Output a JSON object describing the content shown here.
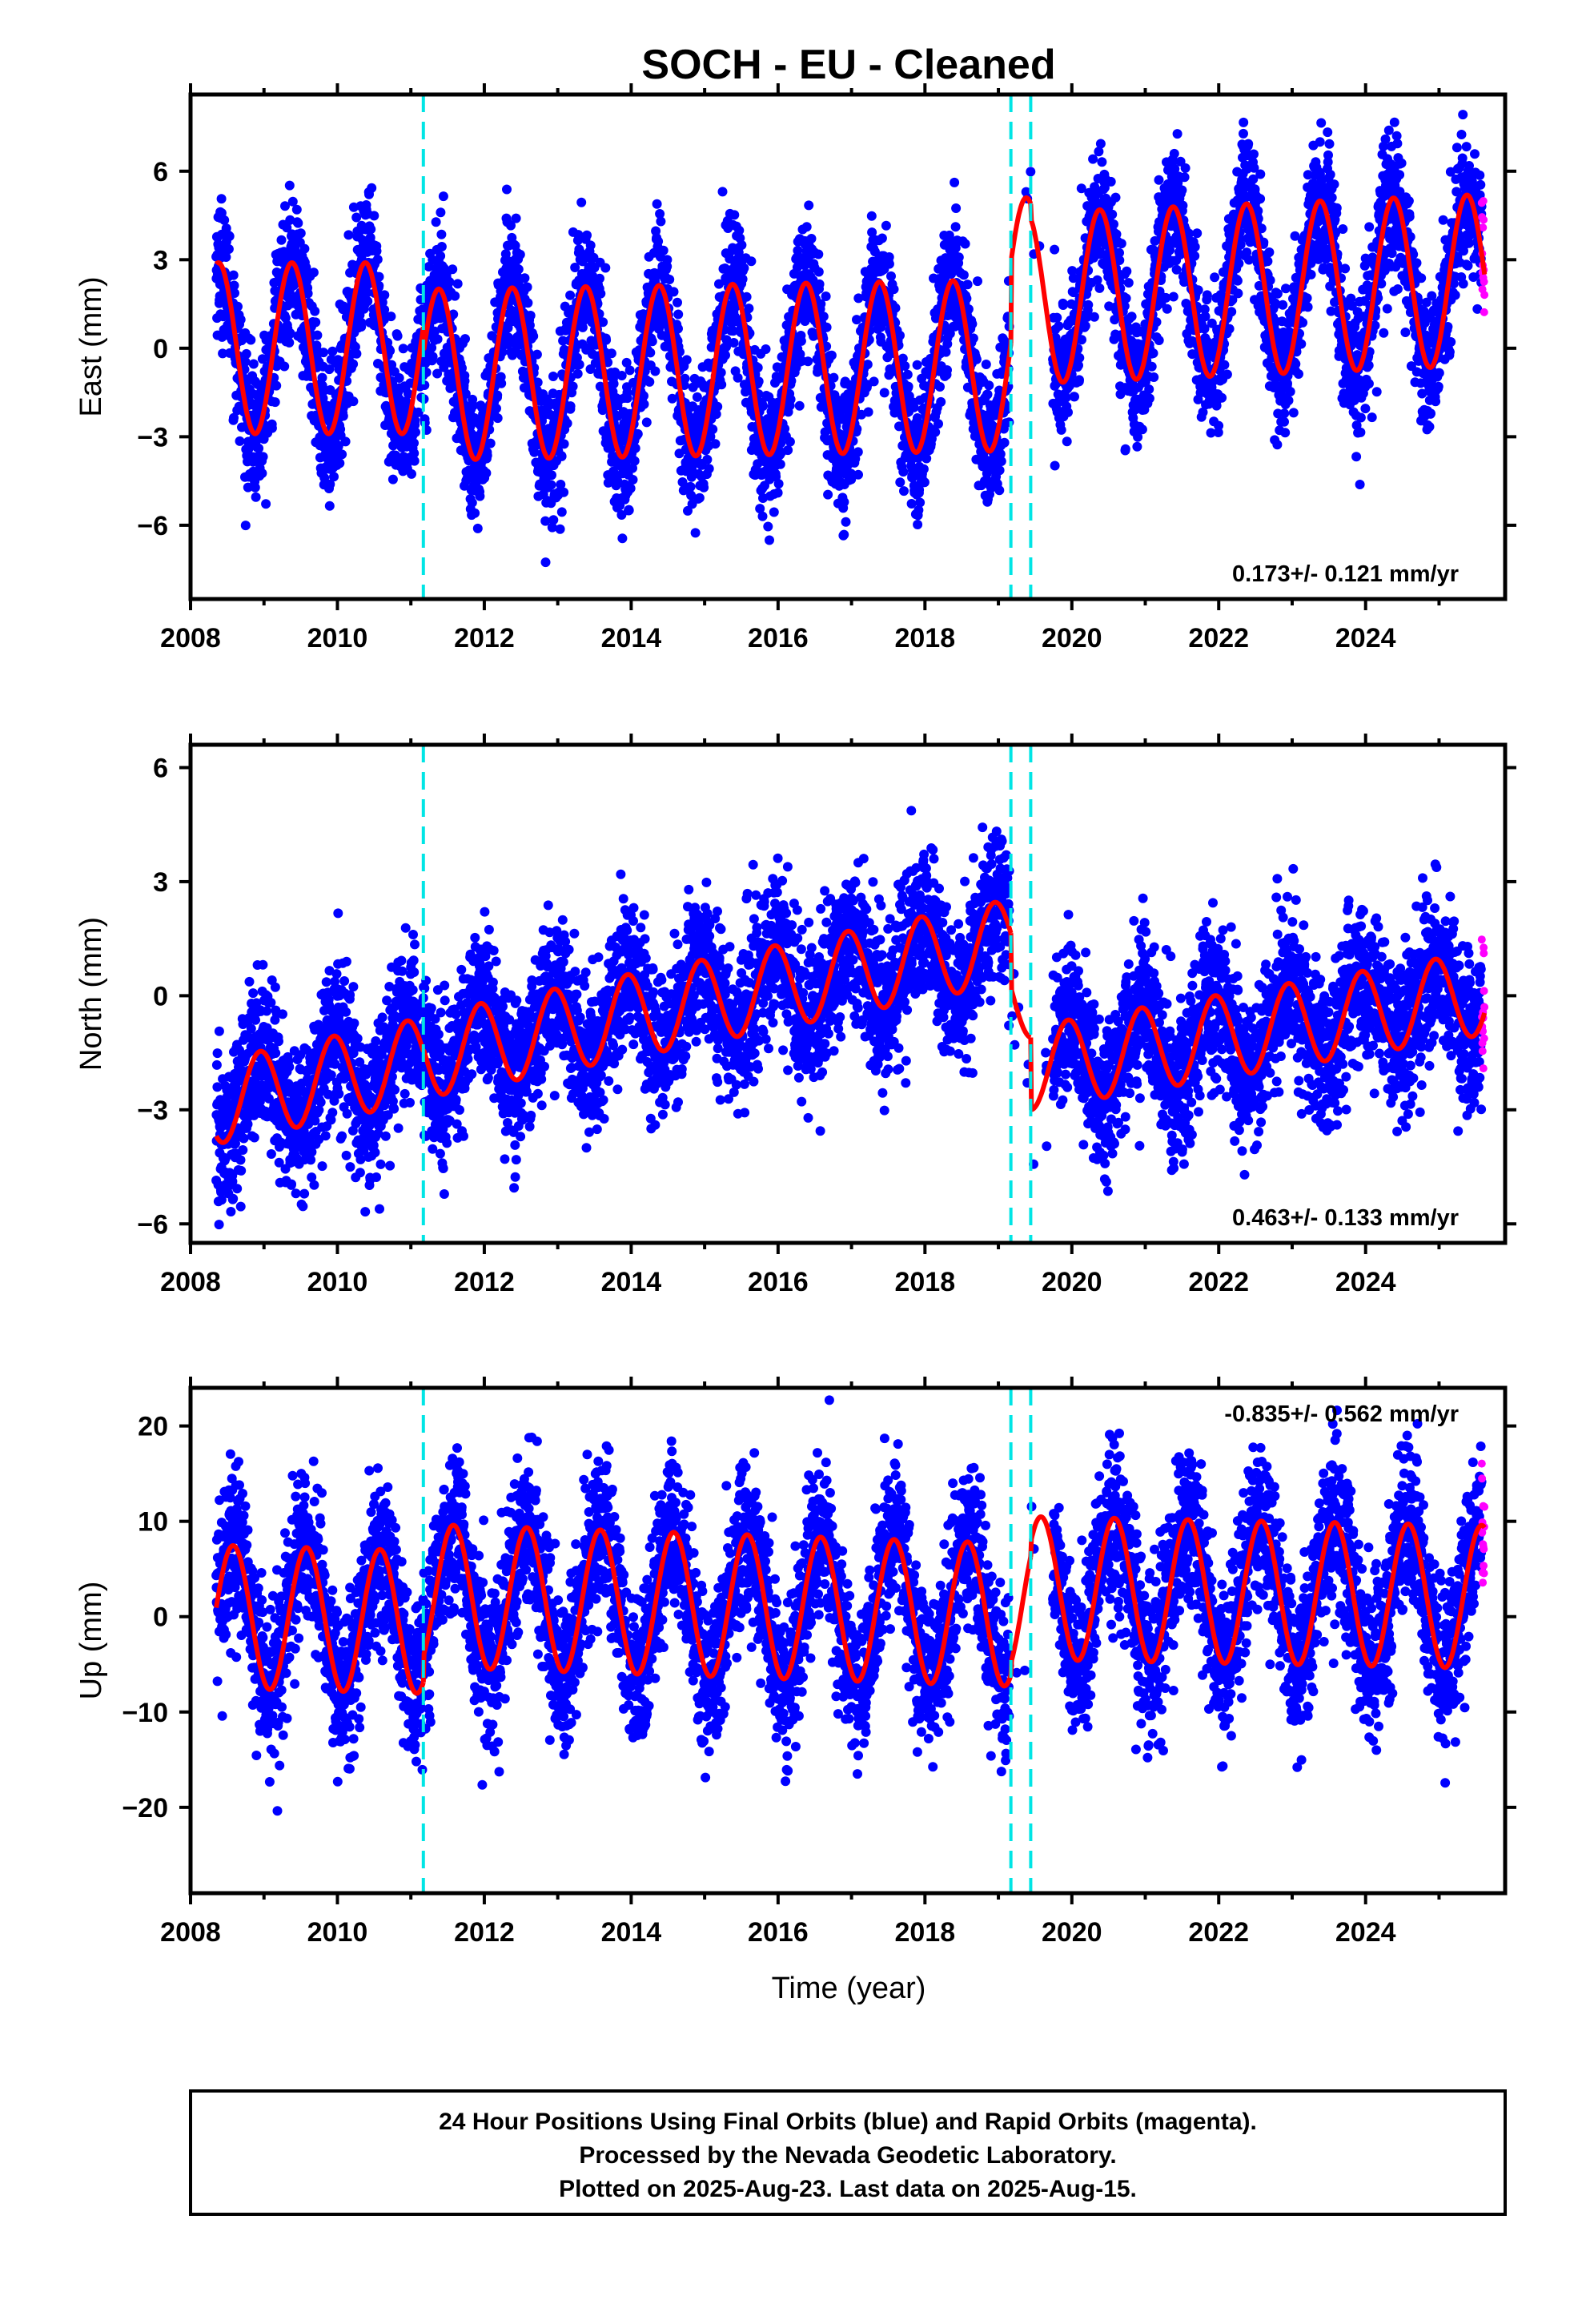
{
  "chart_data": {
    "title": "SOCH  - EU - Cleaned",
    "type": "scatter",
    "xlabel": "Time (year)",
    "xlim": [
      2008,
      2025.9
    ],
    "xticks": [
      2008,
      2010,
      2012,
      2014,
      2016,
      2018,
      2020,
      2022,
      2024
    ],
    "colors": {
      "final": "#0000ff",
      "rapid": "#ff00ff",
      "model": "#ff0000",
      "breaks": "#00e5e5"
    },
    "series_legend": [
      "Final Orbits (blue)",
      "Rapid Orbits (magenta)"
    ],
    "data_span": [
      2008.35,
      2025.62
    ],
    "rapid_start": 2025.58,
    "equipment_breaks": [
      2011.17,
      2019.17,
      2019.44
    ],
    "panels": [
      {
        "component": "east",
        "ylabel": "East (mm)",
        "ylim": [
          -8.5,
          8.6
        ],
        "yticks": [
          -6,
          -3,
          0,
          3,
          6
        ],
        "rate": "0.173+/- 0.121 mm/yr",
        "rate_position": "bottom-right",
        "model": {
          "annual_amplitude": 2.9,
          "annual_phase_peak": 0.38,
          "scatter_sd": 1.15,
          "segments": [
            {
              "from": 2008.35,
              "to": 2011.17,
              "offset": 0.0,
              "trend": 0.0
            },
            {
              "from": 2011.17,
              "to": 2019.17,
              "offset": -0.9,
              "trend": 0.04
            },
            {
              "from": 2019.17,
              "to": 2019.44,
              "offset": 2.2,
              "trend": 0.0
            },
            {
              "from": 2019.44,
              "to": 2025.62,
              "offset": 1.7,
              "trend": 0.1
            }
          ]
        }
      },
      {
        "component": "north",
        "ylabel": "North (mm)",
        "ylim": [
          -6.5,
          6.6
        ],
        "yticks": [
          -6,
          -3,
          0,
          3,
          6
        ],
        "rate": "0.463+/- 0.133 mm/yr",
        "rate_position": "bottom-right",
        "model": {
          "annual_amplitude": 1.1,
          "annual_phase_peak": 0.95,
          "scatter_sd": 1.0,
          "segments": [
            {
              "from": 2008.35,
              "to": 2011.17,
              "offset": -2.8,
              "trend": 0.4
            },
            {
              "from": 2011.17,
              "to": 2019.17,
              "offset": -1.6,
              "trend": 0.38
            },
            {
              "from": 2019.17,
              "to": 2019.44,
              "offset": 0.0,
              "trend": 0.0
            },
            {
              "from": 2019.44,
              "to": 2025.62,
              "offset": -1.9,
              "trend": 0.32
            }
          ]
        }
      },
      {
        "component": "up",
        "ylabel": "Up (mm)",
        "ylim": [
          -29,
          24
        ],
        "yticks": [
          -20,
          -10,
          0,
          10,
          20
        ],
        "rate": "-0.835+/- 0.562 mm/yr",
        "rate_position": "top-right",
        "model": {
          "annual_amplitude": 7.5,
          "annual_phase_peak": 0.58,
          "scatter_sd": 4.2,
          "segments": [
            {
              "from": 2008.35,
              "to": 2011.17,
              "offset": 0.0,
              "trend": -0.2
            },
            {
              "from": 2011.17,
              "to": 2019.17,
              "offset": 2.2,
              "trend": -0.25
            },
            {
              "from": 2019.17,
              "to": 2019.44,
              "offset": 1.5,
              "trend": 0.0
            },
            {
              "from": 2019.44,
              "to": 2025.62,
              "offset": 3.0,
              "trend": -0.15
            }
          ]
        }
      }
    ]
  },
  "footer": {
    "line1": "24 Hour Positions Using Final Orbits (blue) and Rapid Orbits (magenta).",
    "line2": "Processed by the Nevada Geodetic Laboratory.",
    "line3": "Plotted on 2025-Aug-23. Last data on 2025-Aug-15."
  }
}
